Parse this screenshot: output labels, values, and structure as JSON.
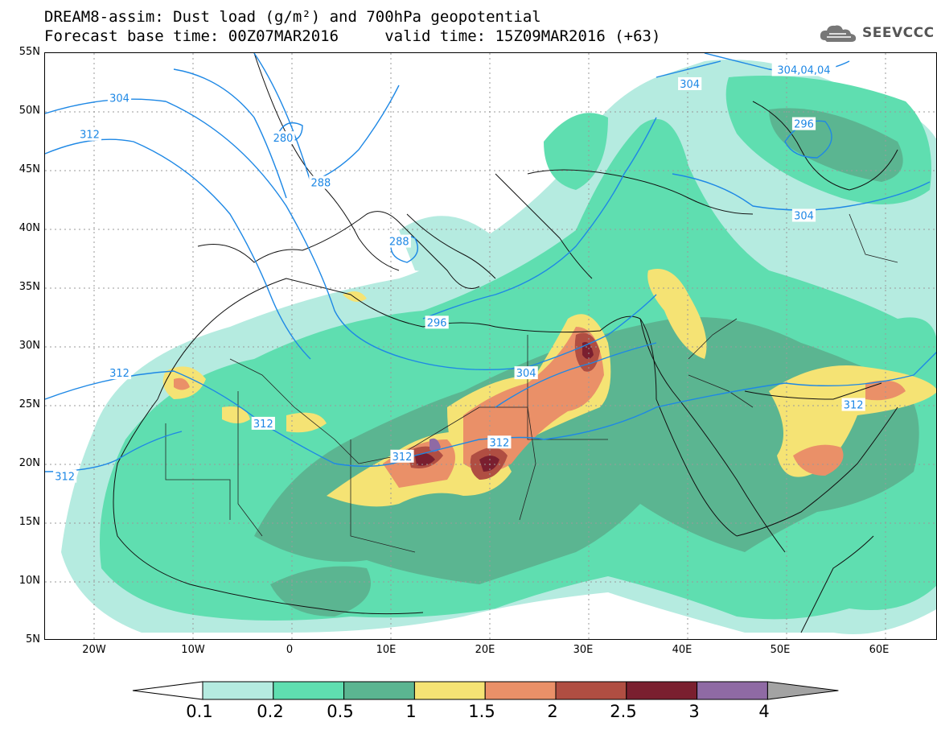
{
  "title": {
    "line1": "DREAM8-assim: Dust load (g/m²) and 700hPa geopotential",
    "line2": "Forecast base time: 00Z07MAR2016     valid time: 15Z09MAR2016 (+63)"
  },
  "logo": {
    "text": "SEEVCCC",
    "icon": "cloud-icon"
  },
  "map": {
    "lon_range": [
      -25,
      65
    ],
    "lat_range": [
      5,
      55
    ],
    "lat_labels": [
      "55N",
      "50N",
      "45N",
      "40N",
      "35N",
      "30N",
      "25N",
      "20N",
      "15N",
      "10N",
      "5N"
    ],
    "lon_labels": [
      "20W",
      "10W",
      "0",
      "10E",
      "20E",
      "30E",
      "40E",
      "50E",
      "60E"
    ],
    "contour_labels": [
      {
        "text": "304",
        "lon": -17.5,
        "lat": 51.2
      },
      {
        "text": "312",
        "lon": -20.5,
        "lat": 48.1
      },
      {
        "text": "280",
        "lon": -1.0,
        "lat": 47.8
      },
      {
        "text": "288",
        "lon": 2.8,
        "lat": 44.0
      },
      {
        "text": "304",
        "lon": 40.0,
        "lat": 52.4
      },
      {
        "text": "304,04,04",
        "lon": 51.5,
        "lat": 53.6
      },
      {
        "text": "296",
        "lon": 51.5,
        "lat": 49.0
      },
      {
        "text": "304",
        "lon": 51.5,
        "lat": 41.2
      },
      {
        "text": "288",
        "lon": 10.7,
        "lat": 39.0
      },
      {
        "text": "296",
        "lon": 14.5,
        "lat": 32.1
      },
      {
        "text": "312",
        "lon": -17.5,
        "lat": 27.8
      },
      {
        "text": "304",
        "lon": 23.5,
        "lat": 27.8
      },
      {
        "text": "312",
        "lon": 56.5,
        "lat": 25.1
      },
      {
        "text": "312",
        "lon": -3.0,
        "lat": 23.5
      },
      {
        "text": "312",
        "lon": 20.8,
        "lat": 21.9
      },
      {
        "text": "312",
        "lon": 11.0,
        "lat": 20.7
      },
      {
        "text": "312",
        "lon": -23.0,
        "lat": 19.0
      }
    ]
  },
  "legend": {
    "unit": "g/m²",
    "colors": [
      "#ffffff",
      "#b5ebe0",
      "#5fdeb0",
      "#5bb591",
      "#f5e374",
      "#ea9068",
      "#b04e42",
      "#7a1f2f",
      "#8f6aa4",
      "#a3a3a3"
    ],
    "labels": [
      "0.1",
      "0.2",
      "0.5",
      "1",
      "1.5",
      "2",
      "2.5",
      "3",
      "4"
    ]
  }
}
